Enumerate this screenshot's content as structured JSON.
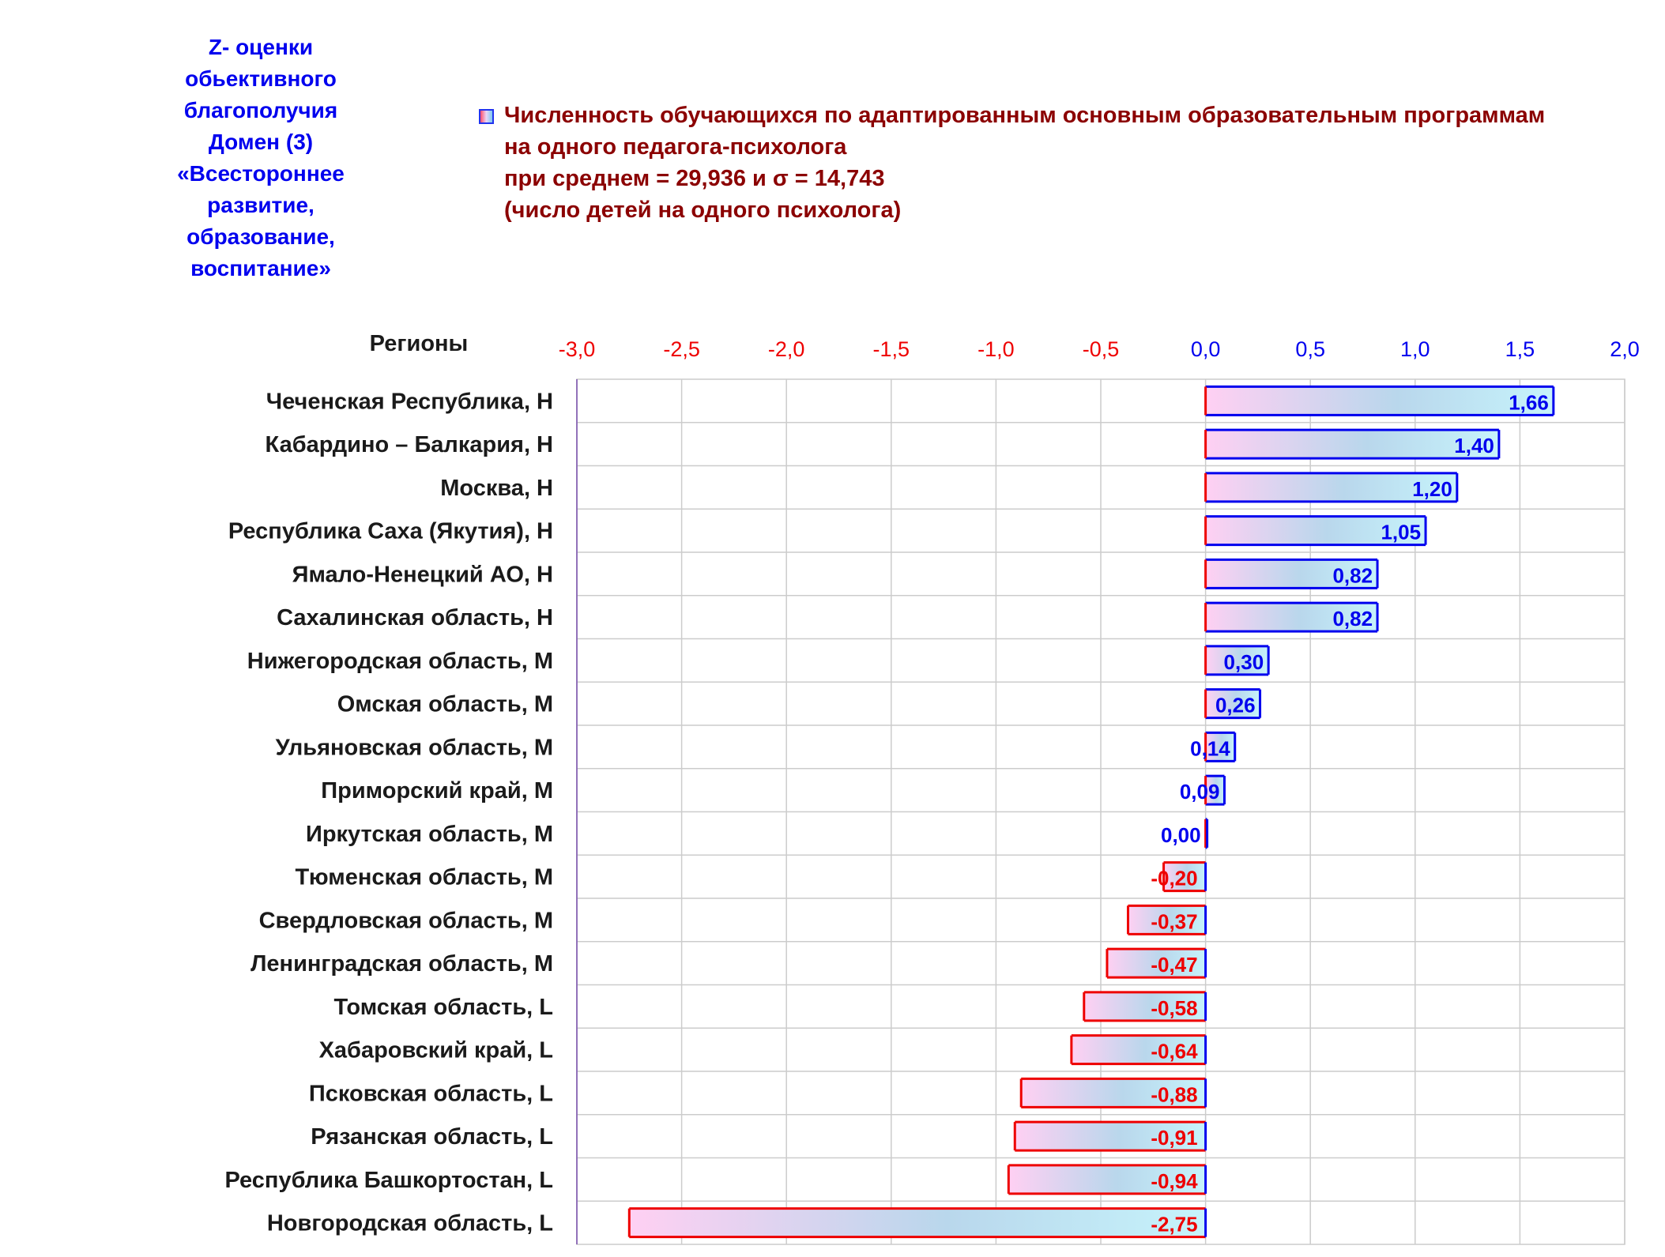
{
  "domain_note": [
    "Z- оценки",
    "обьективного",
    "благополучия",
    "Домен (3)",
    "«Всестороннее",
    "развитие,",
    "образование,",
    "воспитание»"
  ],
  "legend": {
    "line1": "Численность обучающихся по адаптированным основным образовательным программам",
    "line2": "на одного педагога-психолога",
    "line3": "при среднем = 29,936  и σ = 14,743",
    "line4": "(число детей на одного психолога)"
  },
  "colors": {
    "positive": "#0000ee",
    "negative": "#ee0000",
    "title": "#8b0000",
    "grid": "#cccccc"
  },
  "chart_data": {
    "type": "bar",
    "orientation": "horizontal",
    "category_axis_title": "Регионы",
    "categories": [
      "Чеченская Республика,  H",
      "Кабардино – Балкария,  H",
      "Москва,  H",
      "Республика Саха (Якутия),  H",
      "Ямало-Ненецкий АО,  H",
      "Сахалинская область,  H",
      "Нижегородская область,  M",
      "Омская область,  M",
      "Ульяновская область,  M",
      "Приморский край,  M",
      "Иркутская область,  M",
      "Тюменская область,  M",
      "Свердловская область,  M",
      "Ленинградская область,  M",
      "Томская область,  L",
      "Хабаровский край,  L",
      "Псковская область,  L",
      "Рязанская область,  L",
      "Республика Башкортостан,  L",
      "Новгородская область,  L"
    ],
    "values": [
      1.66,
      1.4,
      1.2,
      1.05,
      0.82,
      0.82,
      0.3,
      0.26,
      0.14,
      0.09,
      0.0,
      -0.2,
      -0.37,
      -0.47,
      -0.58,
      -0.64,
      -0.88,
      -0.91,
      -0.94,
      -2.75
    ],
    "value_labels": [
      "1,66",
      "1,40",
      "1,20",
      "1,05",
      "0,82",
      "0,82",
      "0,30",
      "0,26",
      "0,14",
      "0,09",
      "0,00",
      "-0,20",
      "-0,37",
      "-0,47",
      "-0,58",
      "-0,64",
      "-0,88",
      "-0,91",
      "-0,94",
      "-2,75"
    ],
    "xlim": [
      -3.0,
      2.0
    ],
    "x_ticks": [
      -3.0,
      -2.5,
      -2.0,
      -1.5,
      -1.0,
      -0.5,
      0.0,
      0.5,
      1.0,
      1.5,
      2.0
    ],
    "x_tick_labels": [
      "-3,0",
      "-2,5",
      "-2,0",
      "-1,5",
      "-1,0",
      "-0,5",
      "0,0",
      "0,5",
      "1,0",
      "1,5",
      "2,0"
    ],
    "x_axis_position": "top",
    "grid": true
  }
}
